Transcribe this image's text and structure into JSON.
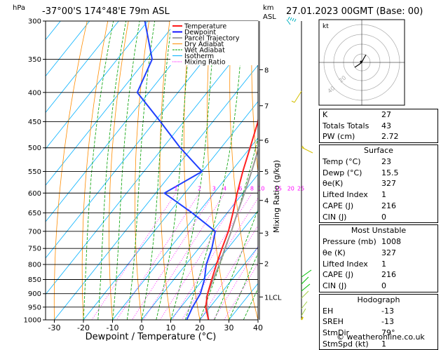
{
  "header": {
    "hpa_label": "hPa",
    "location": "-37°00'S 174°48'E 79m ASL",
    "km_label": "km",
    "asl_label": "ASL",
    "datetime": "27.01.2023 00GMT (Base: 00)",
    "credit": "© weatheronline.co.uk"
  },
  "legend": [
    {
      "label": "Temperature",
      "color": "#ff0000"
    },
    {
      "label": "Dewpoint",
      "color": "#0000ff"
    },
    {
      "label": "Parcel Trajectory",
      "color": "#999999"
    },
    {
      "label": "Dry Adiabat",
      "color": "#ff8c00"
    },
    {
      "label": "Wet Adiabat",
      "color": "#00a000"
    },
    {
      "label": "Isotherm",
      "color": "#00b0ff"
    },
    {
      "label": "Mixing Ratio",
      "color": "#ff00ff"
    }
  ],
  "chart_data": {
    "type": "skew-t",
    "xlabel": "Dewpoint / Temperature (°C)",
    "mixing_ratio_axis_label": "Mixing Ratio (g/kg)",
    "pressure_levels": [
      300,
      350,
      400,
      450,
      500,
      550,
      600,
      650,
      700,
      750,
      800,
      850,
      900,
      950,
      1000
    ],
    "temperature_ticks": [
      -30,
      -20,
      -10,
      0,
      10,
      20,
      30,
      40
    ],
    "xlim": [
      -35,
      40
    ],
    "ylim": [
      1000,
      300
    ],
    "km_ticks": [
      {
        "label": "8",
        "p": 365
      },
      {
        "label": "7",
        "p": 422
      },
      {
        "label": "6",
        "p": 485
      },
      {
        "label": "5",
        "p": 550
      },
      {
        "label": "4",
        "p": 618
      },
      {
        "label": "3",
        "p": 705
      },
      {
        "label": "2",
        "p": 797
      },
      {
        "label": "1LCL",
        "p": 912
      }
    ],
    "mixing_ratio_labels": [
      "1",
      "2",
      "3",
      "4",
      "6",
      "8",
      "10",
      "15",
      "20",
      "25"
    ],
    "mixing_ratio_values": [
      1,
      2,
      3,
      4,
      6,
      8,
      10,
      15,
      20,
      25
    ],
    "temperature_profile": [
      {
        "p": 1000,
        "t": 23
      },
      {
        "p": 950,
        "t": 18.5
      },
      {
        "p": 900,
        "t": 15.5
      },
      {
        "p": 850,
        "t": 13
      },
      {
        "p": 800,
        "t": 10.5
      },
      {
        "p": 750,
        "t": 8
      },
      {
        "p": 700,
        "t": 5.5
      },
      {
        "p": 650,
        "t": 2
      },
      {
        "p": 600,
        "t": -2
      },
      {
        "p": 550,
        "t": -6
      },
      {
        "p": 500,
        "t": -10
      },
      {
        "p": 450,
        "t": -14.5
      },
      {
        "p": 400,
        "t": -21
      },
      {
        "p": 350,
        "t": -29.5
      },
      {
        "p": 300,
        "t": -39
      }
    ],
    "dewpoint_profile": [
      {
        "p": 1000,
        "t": 15.5
      },
      {
        "p": 950,
        "t": 14
      },
      {
        "p": 900,
        "t": 13
      },
      {
        "p": 850,
        "t": 10.5
      },
      {
        "p": 800,
        "t": 7
      },
      {
        "p": 750,
        "t": 4.5
      },
      {
        "p": 700,
        "t": 1
      },
      {
        "p": 650,
        "t": -12
      },
      {
        "p": 600,
        "t": -27
      },
      {
        "p": 550,
        "t": -20
      },
      {
        "p": 500,
        "t": -34
      },
      {
        "p": 450,
        "t": -48
      },
      {
        "p": 400,
        "t": -64
      },
      {
        "p": 350,
        "t": -68
      },
      {
        "p": 300,
        "t": -81
      }
    ],
    "parcel_profile": [
      {
        "p": 1000,
        "t": 23
      },
      {
        "p": 950,
        "t": 19
      },
      {
        "p": 912,
        "t": 16
      },
      {
        "p": 850,
        "t": 13.5
      },
      {
        "p": 800,
        "t": 11.5
      },
      {
        "p": 750,
        "t": 9
      },
      {
        "p": 700,
        "t": 6.5
      },
      {
        "p": 650,
        "t": 3.5
      },
      {
        "p": 600,
        "t": 0.5
      },
      {
        "p": 550,
        "t": -3
      },
      {
        "p": 500,
        "t": -7
      },
      {
        "p": 450,
        "t": -12
      },
      {
        "p": 400,
        "t": -17.5
      },
      {
        "p": 350,
        "t": -24.5
      },
      {
        "p": 300,
        "t": -33
      }
    ]
  },
  "indices": {
    "rows": [
      {
        "label": "K",
        "value": "27"
      },
      {
        "label": "Totals Totals",
        "value": "43"
      },
      {
        "label": "PW (cm)",
        "value": "2.72"
      }
    ]
  },
  "surface": {
    "title": "Surface",
    "rows": [
      {
        "label": "Temp (°C)",
        "value": "23"
      },
      {
        "label": "Dewp (°C)",
        "value": "15.5"
      },
      {
        "label": "θe(K)",
        "value": "327"
      },
      {
        "label": "Lifted Index",
        "value": "1"
      },
      {
        "label": "CAPE (J)",
        "value": "216"
      },
      {
        "label": "CIN (J)",
        "value": "0"
      }
    ]
  },
  "most_unstable": {
    "title": "Most Unstable",
    "rows": [
      {
        "label": "Pressure (mb)",
        "value": "1008"
      },
      {
        "label": "θe (K)",
        "value": "327"
      },
      {
        "label": "Lifted Index",
        "value": "1"
      },
      {
        "label": "CAPE (J)",
        "value": "216"
      },
      {
        "label": "CIN (J)",
        "value": "0"
      }
    ]
  },
  "hodograph": {
    "title": "Hodograph",
    "kt_label": "kt",
    "ring_labels": [
      "20",
      "40"
    ],
    "rows": [
      {
        "label": "EH",
        "value": "-13"
      },
      {
        "label": "SREH",
        "value": "-13"
      },
      {
        "label": "StmDir",
        "value": "79°"
      },
      {
        "label": "StmSpd (kt)",
        "value": "1"
      }
    ]
  }
}
